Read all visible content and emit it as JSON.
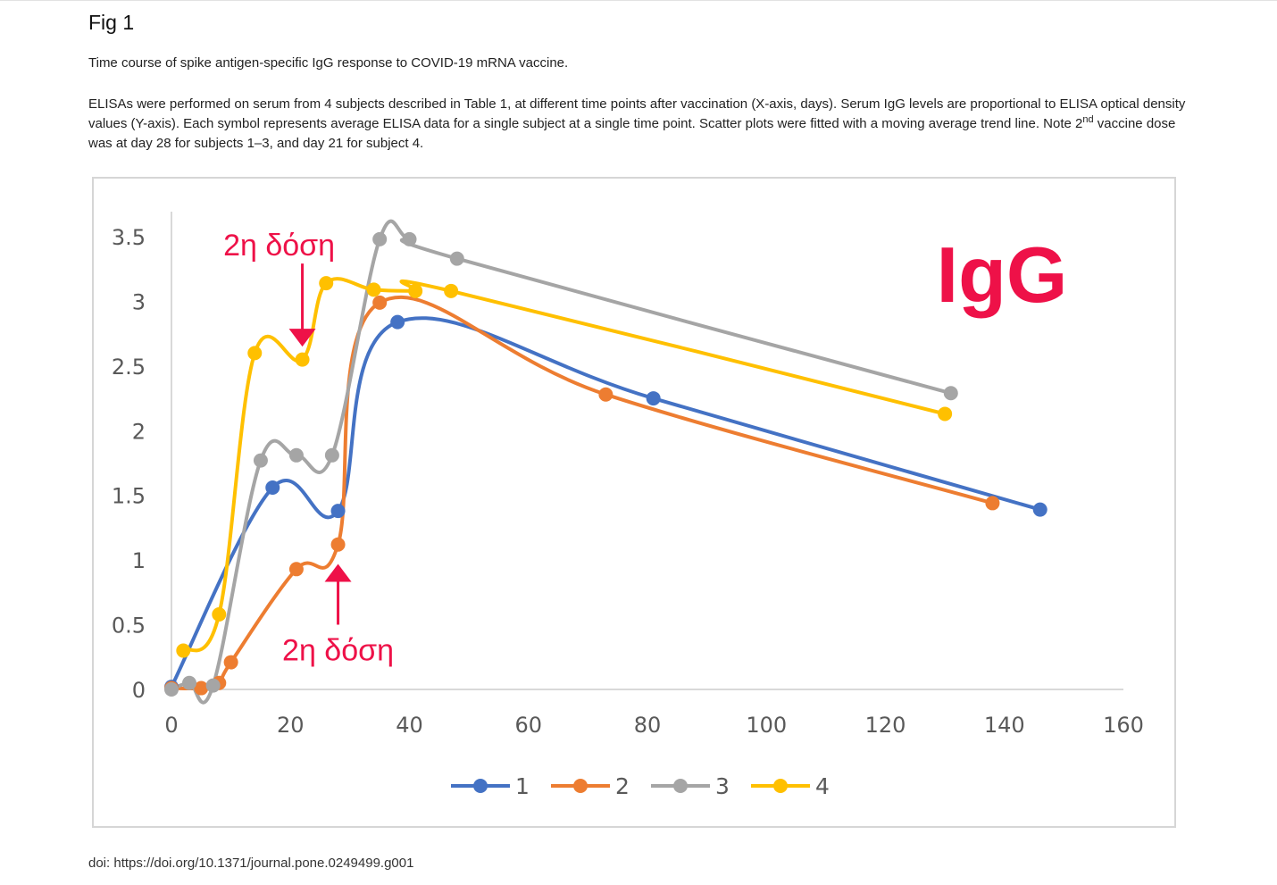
{
  "page": {
    "fig_title": "Fig 1",
    "caption_title": "Time course of spike antigen-specific IgG response to COVID-19 mRNA vaccine.",
    "caption_part1": "ELISAs were performed on serum from 4 subjects described in Table 1, at different time points after vaccination (X-axis, days). Serum IgG levels are proportional to ELISA optical density values (Y-axis). Each symbol represents average ELISA data for a single subject at a single time point. Scatter plots were fitted with a moving average trend line. Note 2",
    "caption_sup": "nd",
    "caption_part2": " vaccine dose was at day 28 for subjects 1–3, and day 21 for subject 4.",
    "doi": "doi: https://doi.org/10.1371/journal.pone.0249499.g001"
  },
  "chart_data": {
    "type": "scatter",
    "title": "IgG",
    "xlabel": "",
    "ylabel": "",
    "xlim": [
      0,
      160
    ],
    "ylim": [
      0,
      3.5
    ],
    "x_ticks": [
      "0",
      "20",
      "40",
      "60",
      "80",
      "100",
      "120",
      "140",
      "160"
    ],
    "y_ticks": [
      "0",
      "0.5",
      "1",
      "1.5",
      "2",
      "2.5",
      "3",
      "3.5"
    ],
    "grid": false,
    "legend": "bottom",
    "trend": "smoothed line",
    "series": [
      {
        "name": "1",
        "color": "#4472C4",
        "x": [
          0,
          17,
          28,
          38,
          81,
          146
        ],
        "y": [
          0.02,
          1.56,
          1.38,
          2.84,
          2.25,
          1.39
        ]
      },
      {
        "name": "2",
        "color": "#ED7D31",
        "x": [
          0,
          5,
          8,
          10,
          21,
          28,
          35,
          73,
          138
        ],
        "y": [
          0.01,
          0.01,
          0.05,
          0.21,
          0.93,
          1.12,
          2.99,
          2.28,
          1.44
        ]
      },
      {
        "name": "3",
        "color": "#A5A5A5",
        "x": [
          0,
          3,
          7,
          15,
          21,
          27,
          35,
          40,
          48,
          131
        ],
        "y": [
          0.0,
          0.05,
          0.03,
          1.77,
          1.81,
          1.81,
          3.48,
          3.48,
          3.33,
          2.29
        ]
      },
      {
        "name": "4",
        "color": "#FFC000",
        "x": [
          2,
          8,
          14,
          22,
          26,
          34,
          41,
          47,
          130
        ],
        "y": [
          0.3,
          0.58,
          2.6,
          2.55,
          3.14,
          3.09,
          3.08,
          3.08,
          2.13
        ]
      }
    ],
    "annotations": [
      {
        "text": "2η δόση",
        "arrow_at": [
          22,
          2.65
        ],
        "direction": "down"
      },
      {
        "text": "2η δόση",
        "arrow_at": [
          28,
          0.97
        ],
        "direction": "up"
      }
    ],
    "annotation_color": "#EE1148"
  }
}
